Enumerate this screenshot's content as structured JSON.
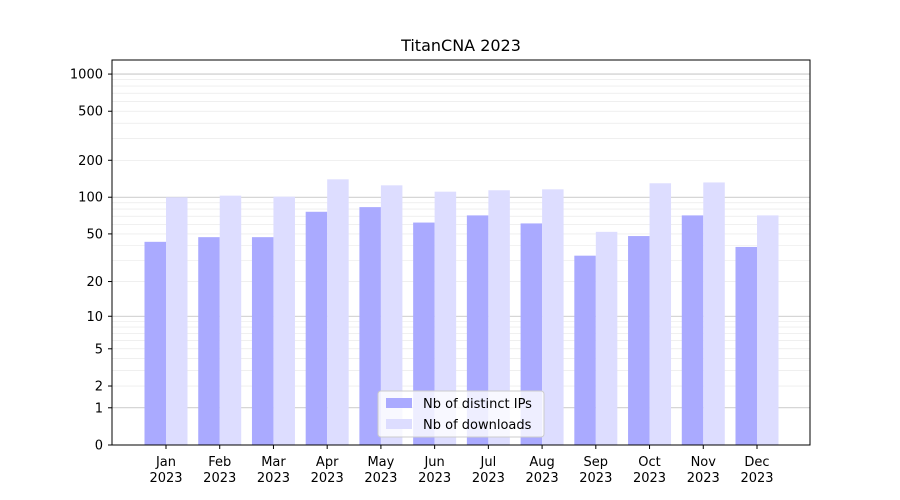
{
  "chart_data": {
    "type": "bar",
    "title": "TitanCNA 2023",
    "xlabel": "",
    "ylabel": "",
    "y_scale": "symlog",
    "ylim": [
      0,
      1300
    ],
    "y_ticks": [
      0,
      1,
      2,
      5,
      10,
      20,
      50,
      100,
      200,
      500,
      1000
    ],
    "y_tick_labels": [
      "0",
      "1",
      "2",
      "5",
      "10",
      "20",
      "50",
      "100",
      "200",
      "500",
      "1000"
    ],
    "categories": [
      "Jan\n2023",
      "Feb\n2023",
      "Mar\n2023",
      "Apr\n2023",
      "May\n2023",
      "Jun\n2023",
      "Jul\n2023",
      "Aug\n2023",
      "Sep\n2023",
      "Oct\n2023",
      "Nov\n2023",
      "Dec\n2023"
    ],
    "category_lines": [
      [
        "Jan",
        "2023"
      ],
      [
        "Feb",
        "2023"
      ],
      [
        "Mar",
        "2023"
      ],
      [
        "Apr",
        "2023"
      ],
      [
        "May",
        "2023"
      ],
      [
        "Jun",
        "2023"
      ],
      [
        "Jul",
        "2023"
      ],
      [
        "Aug",
        "2023"
      ],
      [
        "Sep",
        "2023"
      ],
      [
        "Oct",
        "2023"
      ],
      [
        "Nov",
        "2023"
      ],
      [
        "Dec",
        "2023"
      ]
    ],
    "series": [
      {
        "name": "Nb of distinct IPs",
        "color": "#aaaaff",
        "values": [
          43,
          47,
          47,
          76,
          83,
          62,
          71,
          61,
          33,
          48,
          71,
          39
        ]
      },
      {
        "name": "Nb of downloads",
        "color": "#ddddff",
        "values": [
          100,
          103,
          101,
          140,
          125,
          111,
          114,
          116,
          52,
          130,
          132,
          71
        ]
      }
    ],
    "grid": true,
    "legend_position": "bottom-center"
  }
}
